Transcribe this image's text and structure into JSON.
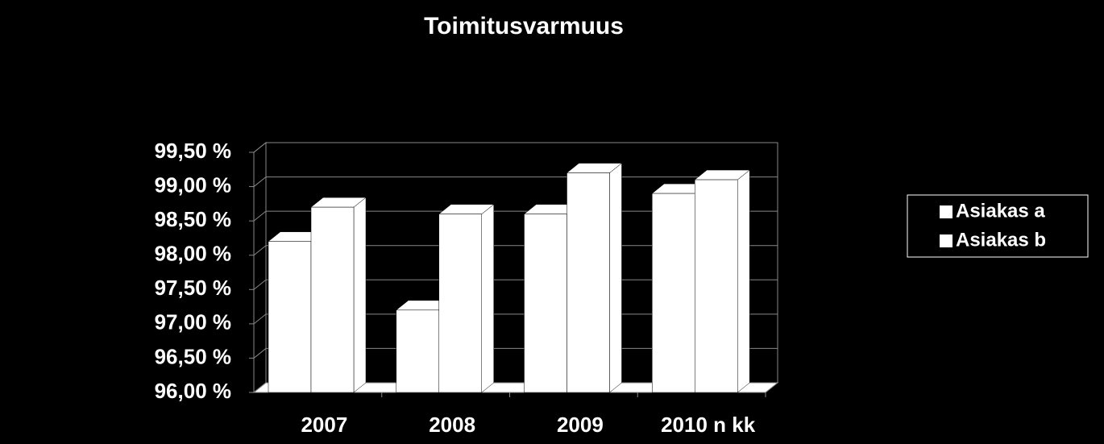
{
  "chart_data": {
    "type": "bar3d",
    "title": "Toimitusvarmuus",
    "categories": [
      "2007",
      "2008",
      "2009",
      "2010 n kk"
    ],
    "series": [
      {
        "name": "Asiakas a",
        "color": "#ffffff",
        "values": [
          98.2,
          97.2,
          98.6,
          98.9
        ]
      },
      {
        "name": "Asiakas b",
        "color": "#ffffff",
        "values": [
          98.7,
          98.6,
          99.2,
          99.1
        ]
      }
    ],
    "ylim": [
      96,
      99.5
    ],
    "yticks": [
      {
        "value": 96,
        "label": "96,00 %"
      },
      {
        "value": 96.5,
        "label": "96,50 %"
      },
      {
        "value": 97,
        "label": "97,00 %"
      },
      {
        "value": 97.5,
        "label": "97,50 %"
      },
      {
        "value": 98,
        "label": "98,00 %"
      },
      {
        "value": 98.5,
        "label": "98,50 %"
      },
      {
        "value": 99,
        "label": "99,00 %"
      },
      {
        "value": 99.5,
        "label": "99,50 %"
      }
    ],
    "grid": true,
    "legend": "right"
  }
}
